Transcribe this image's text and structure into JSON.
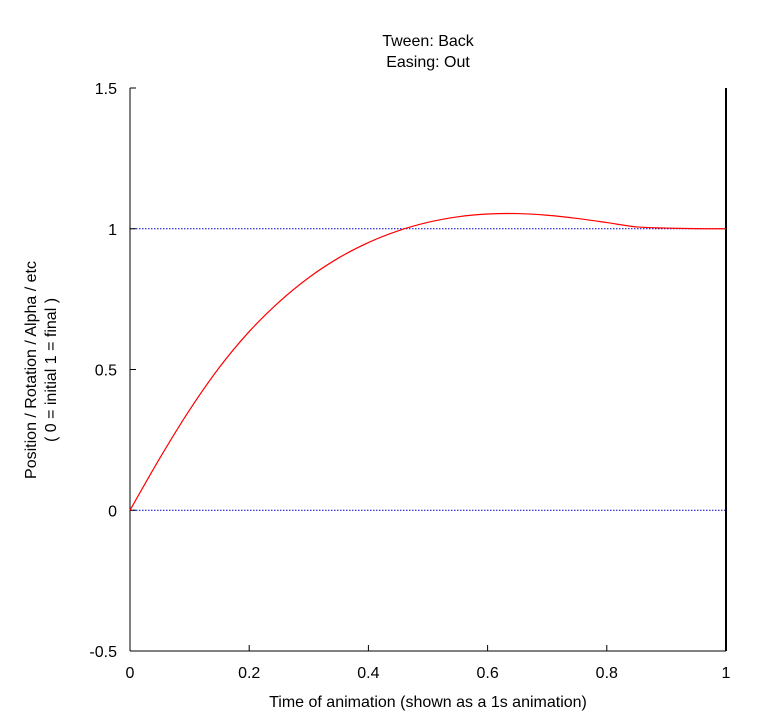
{
  "chart_data": {
    "type": "line",
    "title": "Tween: Back",
    "subtitle": "Easing: Out",
    "xlabel": "Time of animation (shown as a 1s animation)",
    "ylabel": "Position / Rotation / Alpha / etc",
    "ylabel2": "( 0 = initial   1 = final )",
    "xlim": [
      0,
      1
    ],
    "ylim": [
      -0.5,
      1.5
    ],
    "x_ticks": [
      0,
      0.2,
      0.4,
      0.6,
      0.8,
      1
    ],
    "x_tick_labels": [
      "0",
      "0.2",
      "0.4",
      "0.6",
      "0.8",
      "1"
    ],
    "y_ticks": [
      -0.5,
      0,
      0.5,
      1,
      1.5
    ],
    "y_tick_labels": [
      "-0.5",
      "0",
      "0.5",
      "1",
      "1.5"
    ],
    "reference_lines": [
      0,
      1
    ],
    "end_marker_x": 1,
    "colors": {
      "curve": "#ff0000",
      "reference": "#0000cc",
      "axes": "#000000"
    },
    "series": [
      {
        "x": [
          0,
          0.05,
          0.1,
          0.15,
          0.2,
          0.25,
          0.3,
          0.35,
          0.4,
          0.45,
          0.5,
          0.55,
          0.6,
          0.65,
          0.7,
          0.75,
          0.8,
          0.85,
          0.9,
          0.95,
          1
        ],
        "values": [
          0,
          0.1849,
          0.3564,
          0.5076,
          0.6347,
          0.7397,
          0.8265,
          0.8963,
          0.9509,
          0.9928,
          1.0228,
          1.0424,
          1.0523,
          1.0539,
          1.0479,
          1.0366,
          1.0219,
          1.0064,
          1.0025,
          1.0004,
          1
        ]
      }
    ]
  }
}
